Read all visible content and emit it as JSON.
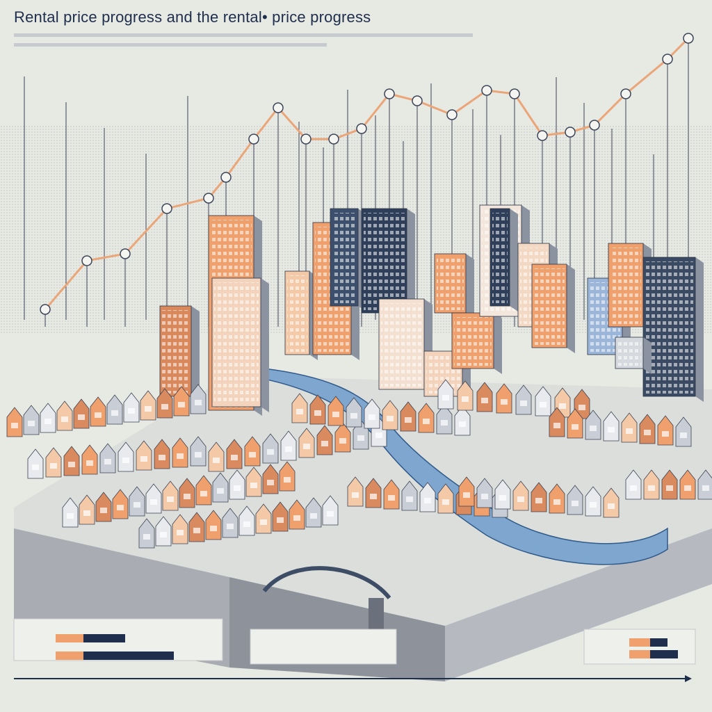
{
  "header": {
    "title": "Rental price progress and the rental• price progress"
  }
}
